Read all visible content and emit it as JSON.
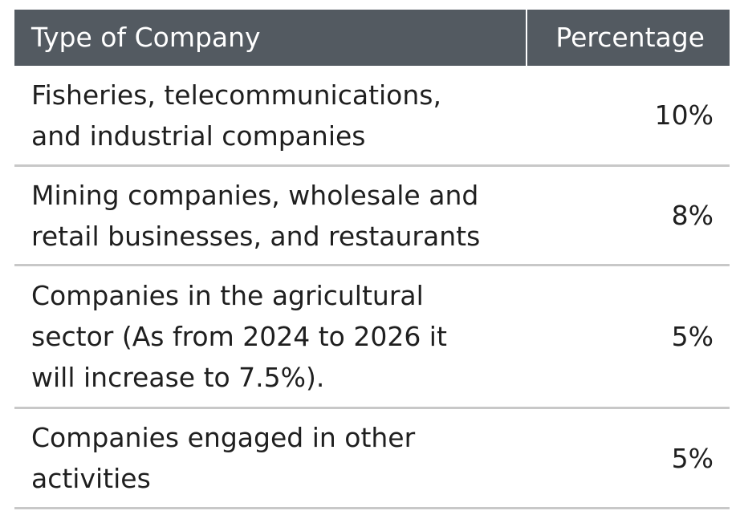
{
  "table": {
    "headers": {
      "type": "Type of Company",
      "percentage": "Percentage"
    },
    "rows": [
      {
        "type_lines": [
          "Fisheries, telecommunications,",
          "and industrial companies"
        ],
        "percentage": "10%"
      },
      {
        "type_lines": [
          "Mining companies, wholesale and",
          "retail businesses, and restaurants"
        ],
        "percentage": "8%"
      },
      {
        "type_lines": [
          "Companies in the agricultural",
          "sector (As from 2024 to 2026 it",
          "will increase to 7.5%)."
        ],
        "percentage": "5%"
      },
      {
        "type_lines": [
          "Companies engaged in other",
          "activities"
        ],
        "percentage": "5%"
      }
    ]
  },
  "colors": {
    "header_bg": "#535a61",
    "header_text": "#ffffff",
    "body_text": "#1f1f1f",
    "row_divider": "#c8c8c8"
  }
}
